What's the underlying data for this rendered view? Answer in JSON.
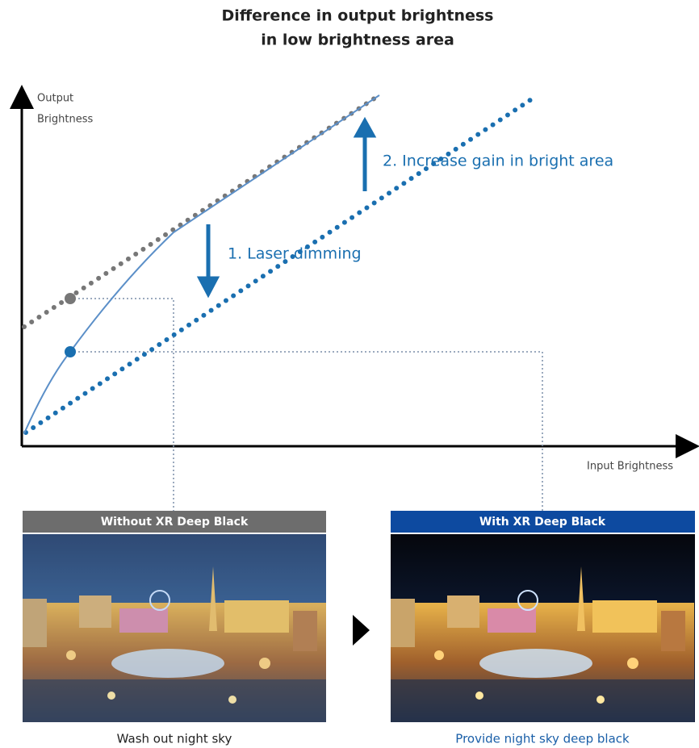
{
  "title": [
    "Difference in output brightness",
    "in low brightness area"
  ],
  "y_axis_label": [
    "Output",
    "Brightness"
  ],
  "x_axis_label": "Input Brightness",
  "annotations": [
    "1. Laser dimming",
    "2. Increase gain in bright area"
  ],
  "panels": [
    {
      "header": "Without XR Deep Black",
      "caption": "Wash out night sky"
    },
    {
      "header": "With XR Deep Black",
      "caption": "Provide night sky deep black"
    }
  ]
}
